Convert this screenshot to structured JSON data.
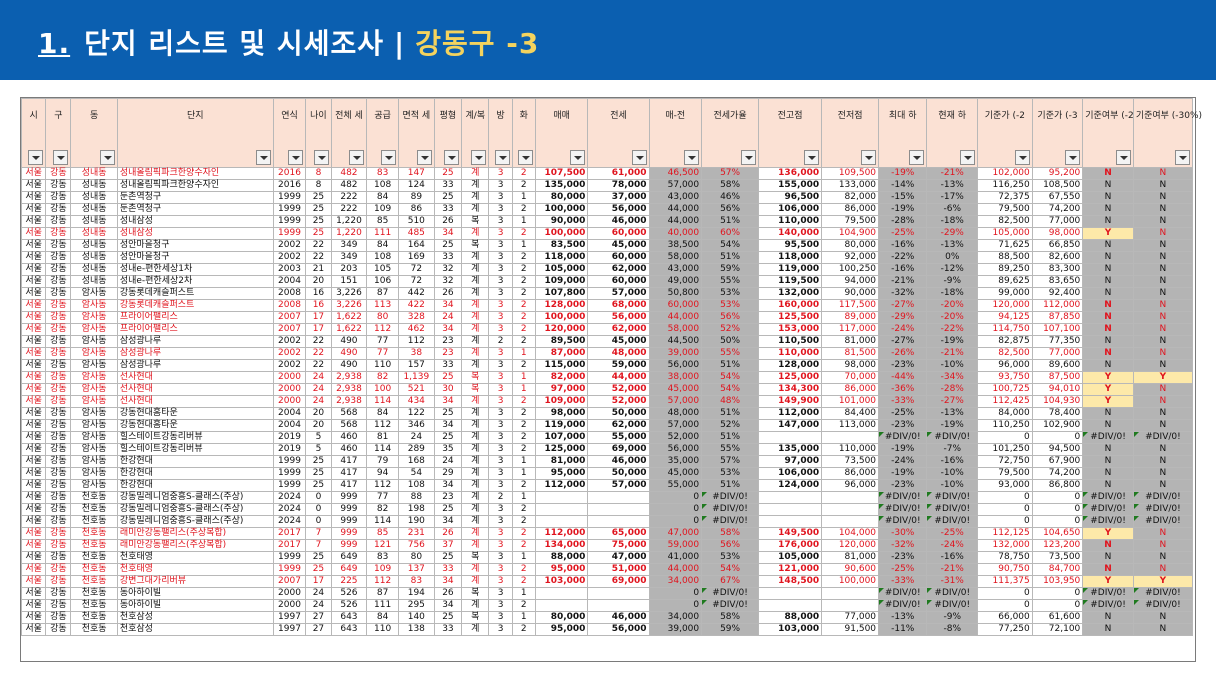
{
  "header": {
    "number": "1.",
    "title": "단지 리스트 및 시세조사",
    "separator": "|",
    "district": "강동구 -3"
  },
  "columns": [
    {
      "key": "si",
      "label": "시"
    },
    {
      "key": "gu",
      "label": "구"
    },
    {
      "key": "dong",
      "label": "동"
    },
    {
      "key": "danji",
      "label": "단지"
    },
    {
      "key": "year",
      "label": "연식"
    },
    {
      "key": "age",
      "label": "나이"
    },
    {
      "key": "total",
      "label": "전체 세"
    },
    {
      "key": "supply",
      "label": "공급"
    },
    {
      "key": "area",
      "label": "면적 세"
    },
    {
      "key": "pyeong",
      "label": "평형"
    },
    {
      "key": "type",
      "label": "계/복"
    },
    {
      "key": "rooms",
      "label": "방"
    },
    {
      "key": "baths",
      "label": "화"
    },
    {
      "key": "sale",
      "label": "매매"
    },
    {
      "key": "jeonse",
      "label": "전세"
    },
    {
      "key": "gap",
      "label": "매-전"
    },
    {
      "key": "ratio",
      "label": "전세가율"
    },
    {
      "key": "peak",
      "label": "전고점"
    },
    {
      "key": "peakj",
      "label": "전저점"
    },
    {
      "key": "maxdrop",
      "label": "최대 하"
    },
    {
      "key": "curdrop",
      "label": "현재 하"
    },
    {
      "key": "base1",
      "label": "기준가 (-2"
    },
    {
      "key": "base2",
      "label": "기준가 (-3"
    },
    {
      "key": "flag1",
      "label": "기준여부 (-2"
    },
    {
      "key": "flag2",
      "label": "기준여부 (-30%)"
    }
  ],
  "rows": [
    {
      "red": true,
      "cells": [
        "서울",
        "강동",
        "성내동",
        "성내올림픽파크한양수자인",
        "2016",
        "8",
        "482",
        "83",
        "147",
        "25",
        "계",
        "3",
        "2",
        "107,500",
        "61,000",
        "46,500",
        "57%",
        "136,000",
        "109,500",
        "-19%",
        "-21%",
        "102,000",
        "95,200",
        "N",
        "N"
      ]
    },
    {
      "red": false,
      "cells": [
        "서울",
        "강동",
        "성내동",
        "성내올림픽파크한양수자인",
        "2016",
        "8",
        "482",
        "108",
        "124",
        "33",
        "계",
        "3",
        "2",
        "135,000",
        "78,000",
        "57,000",
        "58%",
        "155,000",
        "133,000",
        "-14%",
        "-13%",
        "116,250",
        "108,500",
        "N",
        "N"
      ]
    },
    {
      "red": false,
      "cells": [
        "서울",
        "강동",
        "성내동",
        "둔촌역청구",
        "1999",
        "25",
        "222",
        "84",
        "89",
        "25",
        "계",
        "3",
        "1",
        "80,000",
        "37,000",
        "43,000",
        "46%",
        "96,500",
        "82,000",
        "-15%",
        "-17%",
        "72,375",
        "67,550",
        "N",
        "N"
      ]
    },
    {
      "red": false,
      "cells": [
        "서울",
        "강동",
        "성내동",
        "둔촌역청구",
        "1999",
        "25",
        "222",
        "109",
        "86",
        "33",
        "계",
        "3",
        "2",
        "100,000",
        "56,000",
        "44,000",
        "56%",
        "106,000",
        "86,000",
        "-19%",
        "-6%",
        "79,500",
        "74,200",
        "N",
        "N"
      ]
    },
    {
      "red": false,
      "cells": [
        "서울",
        "강동",
        "성내동",
        "성내삼성",
        "1999",
        "25",
        "1,220",
        "85",
        "510",
        "26",
        "복",
        "3",
        "1",
        "90,000",
        "46,000",
        "44,000",
        "51%",
        "110,000",
        "79,500",
        "-28%",
        "-18%",
        "82,500",
        "77,000",
        "N",
        "N"
      ]
    },
    {
      "red": true,
      "cells": [
        "서울",
        "강동",
        "성내동",
        "성내삼성",
        "1999",
        "25",
        "1,220",
        "111",
        "485",
        "34",
        "계",
        "3",
        "2",
        "100,000",
        "60,000",
        "40,000",
        "60%",
        "140,000",
        "104,900",
        "-25%",
        "-29%",
        "105,000",
        "98,000",
        "Y",
        "N"
      ]
    },
    {
      "red": false,
      "cells": [
        "서울",
        "강동",
        "성내동",
        "성안마을청구",
        "2002",
        "22",
        "349",
        "84",
        "164",
        "25",
        "복",
        "3",
        "1",
        "83,500",
        "45,000",
        "38,500",
        "54%",
        "95,500",
        "80,000",
        "-16%",
        "-13%",
        "71,625",
        "66,850",
        "N",
        "N"
      ]
    },
    {
      "red": false,
      "cells": [
        "서울",
        "강동",
        "성내동",
        "성안마을청구",
        "2002",
        "22",
        "349",
        "108",
        "169",
        "33",
        "계",
        "3",
        "2",
        "118,000",
        "60,000",
        "58,000",
        "51%",
        "118,000",
        "92,000",
        "-22%",
        "0%",
        "88,500",
        "82,600",
        "N",
        "N"
      ]
    },
    {
      "red": false,
      "cells": [
        "서울",
        "강동",
        "성내동",
        "성내e-편한세상1차",
        "2003",
        "21",
        "203",
        "105",
        "72",
        "32",
        "계",
        "3",
        "2",
        "105,000",
        "62,000",
        "43,000",
        "59%",
        "119,000",
        "100,250",
        "-16%",
        "-12%",
        "89,250",
        "83,300",
        "N",
        "N"
      ]
    },
    {
      "red": false,
      "cells": [
        "서울",
        "강동",
        "성내동",
        "성내e-편한세상2차",
        "2004",
        "20",
        "151",
        "106",
        "72",
        "32",
        "계",
        "3",
        "2",
        "109,000",
        "60,000",
        "49,000",
        "55%",
        "119,500",
        "94,000",
        "-21%",
        "-9%",
        "89,625",
        "83,650",
        "N",
        "N"
      ]
    },
    {
      "red": false,
      "cells": [
        "서울",
        "강동",
        "암사동",
        "강동롯데캐슬퍼스트",
        "2008",
        "16",
        "3,226",
        "87",
        "442",
        "26",
        "계",
        "3",
        "2",
        "107,800",
        "57,000",
        "50,800",
        "53%",
        "132,000",
        "90,000",
        "-32%",
        "-18%",
        "99,000",
        "92,400",
        "N",
        "N"
      ]
    },
    {
      "red": true,
      "cells": [
        "서울",
        "강동",
        "암사동",
        "강동롯데캐슬퍼스트",
        "2008",
        "16",
        "3,226",
        "113",
        "422",
        "34",
        "계",
        "3",
        "2",
        "128,000",
        "68,000",
        "60,000",
        "53%",
        "160,000",
        "117,500",
        "-27%",
        "-20%",
        "120,000",
        "112,000",
        "N",
        "N"
      ]
    },
    {
      "red": true,
      "cells": [
        "서울",
        "강동",
        "암사동",
        "프라이어팰리스",
        "2007",
        "17",
        "1,622",
        "80",
        "328",
        "24",
        "계",
        "3",
        "2",
        "100,000",
        "56,000",
        "44,000",
        "56%",
        "125,500",
        "89,000",
        "-29%",
        "-20%",
        "94,125",
        "87,850",
        "N",
        "N"
      ]
    },
    {
      "red": true,
      "cells": [
        "서울",
        "강동",
        "암사동",
        "프라이어팰리스",
        "2007",
        "17",
        "1,622",
        "112",
        "462",
        "34",
        "계",
        "3",
        "2",
        "120,000",
        "62,000",
        "58,000",
        "52%",
        "153,000",
        "117,000",
        "-24%",
        "-22%",
        "114,750",
        "107,100",
        "N",
        "N"
      ]
    },
    {
      "red": false,
      "cells": [
        "서울",
        "강동",
        "암사동",
        "삼성광나루",
        "2002",
        "22",
        "490",
        "77",
        "112",
        "23",
        "계",
        "2",
        "2",
        "89,500",
        "45,000",
        "44,500",
        "50%",
        "110,500",
        "81,000",
        "-27%",
        "-19%",
        "82,875",
        "77,350",
        "N",
        "N"
      ]
    },
    {
      "red": true,
      "cells": [
        "서울",
        "강동",
        "암사동",
        "삼성광나루",
        "2002",
        "22",
        "490",
        "77",
        "38",
        "23",
        "계",
        "3",
        "1",
        "87,000",
        "48,000",
        "39,000",
        "55%",
        "110,000",
        "81,500",
        "-26%",
        "-21%",
        "82,500",
        "77,000",
        "N",
        "N"
      ]
    },
    {
      "red": false,
      "cells": [
        "서울",
        "강동",
        "암사동",
        "삼성광나루",
        "2002",
        "22",
        "490",
        "110",
        "157",
        "33",
        "계",
        "3",
        "2",
        "115,000",
        "59,000",
        "56,000",
        "51%",
        "128,000",
        "98,000",
        "-23%",
        "-10%",
        "96,000",
        "89,600",
        "N",
        "N"
      ]
    },
    {
      "red": true,
      "cells": [
        "서울",
        "강동",
        "암사동",
        "선사현대",
        "2000",
        "24",
        "2,938",
        "82",
        "1,139",
        "25",
        "복",
        "3",
        "1",
        "82,000",
        "44,000",
        "38,000",
        "54%",
        "125,000",
        "70,000",
        "-44%",
        "-34%",
        "93,750",
        "87,500",
        "Y",
        "Y"
      ]
    },
    {
      "red": true,
      "cells": [
        "서울",
        "강동",
        "암사동",
        "선사현대",
        "2000",
        "24",
        "2,938",
        "100",
        "521",
        "30",
        "복",
        "3",
        "1",
        "97,000",
        "52,000",
        "45,000",
        "54%",
        "134,300",
        "86,000",
        "-36%",
        "-28%",
        "100,725",
        "94,010",
        "Y",
        "N"
      ]
    },
    {
      "red": true,
      "cells": [
        "서울",
        "강동",
        "암사동",
        "선사현대",
        "2000",
        "24",
        "2,938",
        "114",
        "434",
        "34",
        "계",
        "3",
        "2",
        "109,000",
        "52,000",
        "57,000",
        "48%",
        "149,900",
        "101,000",
        "-33%",
        "-27%",
        "112,425",
        "104,930",
        "Y",
        "N"
      ]
    },
    {
      "red": false,
      "cells": [
        "서울",
        "강동",
        "암사동",
        "강동현대홈타운",
        "2004",
        "20",
        "568",
        "84",
        "122",
        "25",
        "계",
        "3",
        "2",
        "98,000",
        "50,000",
        "48,000",
        "51%",
        "112,000",
        "84,400",
        "-25%",
        "-13%",
        "84,000",
        "78,400",
        "N",
        "N"
      ]
    },
    {
      "red": false,
      "cells": [
        "서울",
        "강동",
        "암사동",
        "강동현대홈타운",
        "2004",
        "20",
        "568",
        "112",
        "346",
        "34",
        "계",
        "3",
        "2",
        "119,000",
        "62,000",
        "57,000",
        "52%",
        "147,000",
        "113,000",
        "-23%",
        "-19%",
        "110,250",
        "102,900",
        "N",
        "N"
      ]
    },
    {
      "red": false,
      "cells": [
        "서울",
        "강동",
        "암사동",
        "힐스테이트강동리버뷰",
        "2019",
        "5",
        "460",
        "81",
        "24",
        "25",
        "계",
        "3",
        "2",
        "107,000",
        "55,000",
        "52,000",
        "51%",
        "",
        "",
        "#DIV/0!",
        "#DIV/0!",
        "0",
        "0",
        "#DIV/0!",
        "#DIV/0!"
      ]
    },
    {
      "red": false,
      "cells": [
        "서울",
        "강동",
        "암사동",
        "힐스테이트강동리버뷰",
        "2019",
        "5",
        "460",
        "114",
        "289",
        "35",
        "계",
        "3",
        "2",
        "125,000",
        "69,000",
        "56,000",
        "55%",
        "135,000",
        "110,000",
        "-19%",
        "-7%",
        "101,250",
        "94,500",
        "N",
        "N"
      ]
    },
    {
      "red": false,
      "cells": [
        "서울",
        "강동",
        "암사동",
        "한강현대",
        "1999",
        "25",
        "417",
        "79",
        "168",
        "24",
        "계",
        "3",
        "1",
        "81,000",
        "46,000",
        "35,000",
        "57%",
        "97,000",
        "73,500",
        "-24%",
        "-16%",
        "72,750",
        "67,900",
        "N",
        "N"
      ]
    },
    {
      "red": false,
      "cells": [
        "서울",
        "강동",
        "암사동",
        "한강현대",
        "1999",
        "25",
        "417",
        "94",
        "54",
        "29",
        "계",
        "3",
        "1",
        "95,000",
        "50,000",
        "45,000",
        "53%",
        "106,000",
        "86,000",
        "-19%",
        "-10%",
        "79,500",
        "74,200",
        "N",
        "N"
      ]
    },
    {
      "red": false,
      "cells": [
        "서울",
        "강동",
        "암사동",
        "한강현대",
        "1999",
        "25",
        "417",
        "112",
        "108",
        "34",
        "계",
        "3",
        "2",
        "112,000",
        "57,000",
        "55,000",
        "51%",
        "124,000",
        "96,000",
        "-23%",
        "-10%",
        "93,000",
        "86,800",
        "N",
        "N"
      ]
    },
    {
      "red": false,
      "cells": [
        "서울",
        "강동",
        "천호동",
        "강동밀레니엄중흥S-클래스(주상)",
        "2024",
        "0",
        "999",
        "77",
        "88",
        "23",
        "계",
        "2",
        "1",
        "",
        "",
        "0",
        "#DIV/0!",
        "",
        "",
        "#DIV/0!",
        "#DIV/0!",
        "0",
        "0",
        "#DIV/0!",
        "#DIV/0!"
      ]
    },
    {
      "red": false,
      "cells": [
        "서울",
        "강동",
        "천호동",
        "강동밀레니엄중흥S-클래스(주상)",
        "2024",
        "0",
        "999",
        "82",
        "198",
        "25",
        "계",
        "3",
        "2",
        "",
        "",
        "0",
        "#DIV/0!",
        "",
        "",
        "#DIV/0!",
        "#DIV/0!",
        "0",
        "0",
        "#DIV/0!",
        "#DIV/0!"
      ]
    },
    {
      "red": false,
      "cells": [
        "서울",
        "강동",
        "천호동",
        "강동밀레니엄중흥S-클래스(주상)",
        "2024",
        "0",
        "999",
        "114",
        "190",
        "34",
        "계",
        "3",
        "2",
        "",
        "",
        "0",
        "#DIV/0!",
        "",
        "",
        "#DIV/0!",
        "#DIV/0!",
        "0",
        "0",
        "#DIV/0!",
        "#DIV/0!"
      ]
    },
    {
      "red": true,
      "cells": [
        "서울",
        "강동",
        "천호동",
        "래미안강동팰리스(주상복합)",
        "2017",
        "7",
        "999",
        "85",
        "231",
        "26",
        "계",
        "3",
        "2",
        "112,000",
        "65,000",
        "47,000",
        "58%",
        "149,500",
        "104,000",
        "-30%",
        "-25%",
        "112,125",
        "104,650",
        "Y",
        "N"
      ]
    },
    {
      "red": true,
      "cells": [
        "서울",
        "강동",
        "천호동",
        "래미안강동팰리스(주상복합)",
        "2017",
        "7",
        "999",
        "121",
        "756",
        "37",
        "계",
        "3",
        "2",
        "134,000",
        "75,000",
        "59,000",
        "56%",
        "176,000",
        "120,000",
        "-32%",
        "-24%",
        "132,000",
        "123,200",
        "N",
        "N"
      ]
    },
    {
      "red": false,
      "cells": [
        "서울",
        "강동",
        "천호동",
        "천호태영",
        "1999",
        "25",
        "649",
        "83",
        "80",
        "25",
        "복",
        "3",
        "1",
        "88,000",
        "47,000",
        "41,000",
        "53%",
        "105,000",
        "81,000",
        "-23%",
        "-16%",
        "78,750",
        "73,500",
        "N",
        "N"
      ]
    },
    {
      "red": true,
      "cells": [
        "서울",
        "강동",
        "천호동",
        "천호태영",
        "1999",
        "25",
        "649",
        "109",
        "137",
        "33",
        "계",
        "3",
        "2",
        "95,000",
        "51,000",
        "44,000",
        "54%",
        "121,000",
        "90,600",
        "-25%",
        "-21%",
        "90,750",
        "84,700",
        "N",
        "N"
      ]
    },
    {
      "red": true,
      "cells": [
        "서울",
        "강동",
        "천호동",
        "강변그대가리버뷰",
        "2007",
        "17",
        "225",
        "112",
        "83",
        "34",
        "계",
        "3",
        "2",
        "103,000",
        "69,000",
        "34,000",
        "67%",
        "148,500",
        "100,000",
        "-33%",
        "-31%",
        "111,375",
        "103,950",
        "Y",
        "Y"
      ]
    },
    {
      "red": false,
      "cells": [
        "서울",
        "강동",
        "천호동",
        "동아하이빌",
        "2000",
        "24",
        "526",
        "87",
        "194",
        "26",
        "복",
        "3",
        "1",
        "",
        "",
        "0",
        "#DIV/0!",
        "",
        "",
        "#DIV/0!",
        "#DIV/0!",
        "0",
        "0",
        "#DIV/0!",
        "#DIV/0!"
      ]
    },
    {
      "red": false,
      "cells": [
        "서울",
        "강동",
        "천호동",
        "동아하이빌",
        "2000",
        "24",
        "526",
        "111",
        "295",
        "34",
        "계",
        "3",
        "2",
        "",
        "",
        "0",
        "#DIV/0!",
        "",
        "",
        "#DIV/0!",
        "#DIV/0!",
        "0",
        "0",
        "#DIV/0!",
        "#DIV/0!"
      ]
    },
    {
      "red": false,
      "cells": [
        "서울",
        "강동",
        "천호동",
        "천호삼성",
        "1997",
        "27",
        "643",
        "84",
        "140",
        "25",
        "복",
        "3",
        "1",
        "80,000",
        "46,000",
        "34,000",
        "58%",
        "88,000",
        "77,000",
        "-13%",
        "-9%",
        "66,000",
        "61,600",
        "N",
        "N"
      ]
    },
    {
      "red": false,
      "cells": [
        "서울",
        "강동",
        "천호동",
        "천호삼성",
        "1997",
        "27",
        "643",
        "110",
        "138",
        "33",
        "계",
        "3",
        "2",
        "95,000",
        "56,000",
        "39,000",
        "59%",
        "103,000",
        "91,500",
        "-11%",
        "-8%",
        "77,250",
        "72,100",
        "N",
        "N"
      ]
    }
  ]
}
